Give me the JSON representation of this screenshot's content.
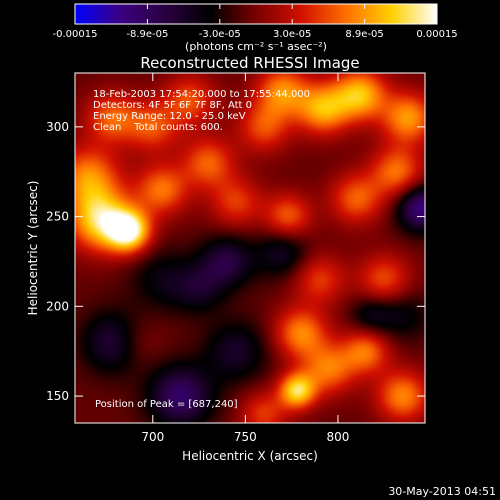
{
  "chart_data": [
    {
      "type": "heatmap",
      "title": "Reconstructed RHESSI Image",
      "info_lines": [
        "18-Feb-2003 17:54:20.000 to 17:55:44.000",
        "Detectors: 4F 5F 6F 7F 8F, Att 0",
        "Energy Range: 12.0 - 25.0 keV",
        "Clean    Total counts: 600."
      ],
      "peak_label": "Position of Peak = [687,240]",
      "xlabel": "Heliocentric X (arcsec)",
      "ylabel": "Heliocentric Y (arcsec)",
      "xlim": [
        658,
        847
      ],
      "ylim": [
        135,
        330
      ],
      "x_ticks": [
        {
          "value": 700,
          "label": "700"
        },
        {
          "value": 750,
          "label": "750"
        },
        {
          "value": 800,
          "label": "800"
        }
      ],
      "y_ticks": [
        {
          "value": 150,
          "label": "150"
        },
        {
          "value": 200,
          "label": "200"
        },
        {
          "value": 250,
          "label": "250"
        },
        {
          "value": 300,
          "label": "300"
        }
      ],
      "colormap": [
        "#0000ff",
        "#3a0080",
        "#2a0040",
        "#000000",
        "#7a0000",
        "#d01000",
        "#ff7000",
        "#ffd000",
        "#ffffff"
      ],
      "blobs": [
        {
          "x": 687,
          "y": 242,
          "amp": 1.0,
          "s": 8
        },
        {
          "x": 672,
          "y": 248,
          "amp": 0.85,
          "s": 12
        },
        {
          "x": 665,
          "y": 272,
          "amp": 0.6,
          "s": 12
        },
        {
          "x": 678,
          "y": 305,
          "amp": 0.5,
          "s": 10
        },
        {
          "x": 700,
          "y": 300,
          "amp": 0.45,
          "s": 10
        },
        {
          "x": 705,
          "y": 265,
          "amp": 0.55,
          "s": 10
        },
        {
          "x": 720,
          "y": 315,
          "amp": 0.45,
          "s": 10
        },
        {
          "x": 730,
          "y": 280,
          "amp": 0.5,
          "s": 10
        },
        {
          "x": 745,
          "y": 258,
          "amp": 0.4,
          "s": 10
        },
        {
          "x": 760,
          "y": 300,
          "amp": 0.45,
          "s": 10
        },
        {
          "x": 770,
          "y": 320,
          "amp": 0.6,
          "s": 10
        },
        {
          "x": 792,
          "y": 310,
          "amp": 0.7,
          "s": 10
        },
        {
          "x": 812,
          "y": 318,
          "amp": 0.75,
          "s": 10
        },
        {
          "x": 838,
          "y": 305,
          "amp": 0.65,
          "s": 10
        },
        {
          "x": 832,
          "y": 275,
          "amp": 0.55,
          "s": 10
        },
        {
          "x": 810,
          "y": 260,
          "amp": 0.5,
          "s": 10
        },
        {
          "x": 773,
          "y": 250,
          "amp": 0.5,
          "s": 9
        },
        {
          "x": 790,
          "y": 215,
          "amp": 0.4,
          "s": 10
        },
        {
          "x": 825,
          "y": 215,
          "amp": 0.45,
          "s": 10
        },
        {
          "x": 780,
          "y": 185,
          "amp": 0.6,
          "s": 10
        },
        {
          "x": 795,
          "y": 165,
          "amp": 0.55,
          "s": 10
        },
        {
          "x": 815,
          "y": 175,
          "amp": 0.55,
          "s": 9
        },
        {
          "x": 835,
          "y": 150,
          "amp": 0.6,
          "s": 10
        },
        {
          "x": 778,
          "y": 153,
          "amp": 0.85,
          "s": 7
        },
        {
          "x": 760,
          "y": 140,
          "amp": 0.4,
          "s": 9
        },
        {
          "x": 690,
          "y": 180,
          "amp": 0.25,
          "s": 10
        },
        {
          "x": 740,
          "y": 225,
          "amp": -0.45,
          "s": 10
        },
        {
          "x": 705,
          "y": 215,
          "amp": -0.25,
          "s": 12
        },
        {
          "x": 680,
          "y": 180,
          "amp": -0.5,
          "s": 12
        },
        {
          "x": 715,
          "y": 150,
          "amp": -0.6,
          "s": 12
        },
        {
          "x": 745,
          "y": 175,
          "amp": -0.35,
          "s": 12
        },
        {
          "x": 845,
          "y": 255,
          "amp": -0.7,
          "s": 9
        },
        {
          "x": 725,
          "y": 210,
          "amp": -0.3,
          "s": 10
        },
        {
          "x": 770,
          "y": 230,
          "amp": -0.35,
          "s": 10
        },
        {
          "x": 835,
          "y": 195,
          "amp": -0.25,
          "s": 10
        },
        {
          "x": 818,
          "y": 195,
          "amp": -0.3,
          "s": 8
        }
      ]
    },
    {
      "type": "colorbar",
      "colormap": [
        "#0000ff",
        "#3a0080",
        "#2a0040",
        "#000000",
        "#7a0000",
        "#d01000",
        "#ff7000",
        "#ffd000",
        "#ffffff"
      ],
      "range": [
        -0.00015,
        0.00015
      ],
      "tick_labels": [
        "-0.00015",
        "-8.9e-05",
        "-3.0e-05",
        "3.0e-05",
        "8.9e-05",
        "0.00015"
      ],
      "unit_label": "(photons cm⁻² s⁻¹ asec⁻²)"
    }
  ],
  "footer": {
    "date": "30-May-2013 04:51"
  }
}
